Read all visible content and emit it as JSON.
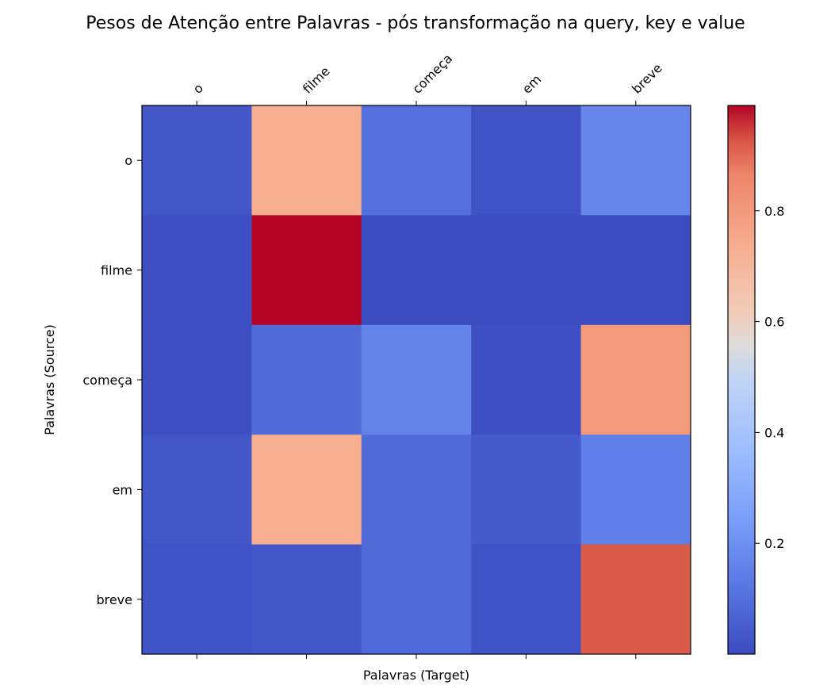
{
  "chart_data": {
    "type": "heatmap",
    "title": "Pesos de Atenção entre Palavras - pós transformação na query, key e value",
    "xlabel": "Palavras (Target)",
    "ylabel": "Palavras (Source)",
    "x_categories": [
      "o",
      "filme",
      "começa",
      "em",
      "breve"
    ],
    "y_categories": [
      "o",
      "filme",
      "começa",
      "em",
      "breve"
    ],
    "values": [
      [
        0.03,
        0.74,
        0.1,
        0.02,
        0.17
      ],
      [
        0.01,
        0.99,
        0.0,
        0.0,
        0.0
      ],
      [
        0.01,
        0.09,
        0.16,
        0.01,
        0.8
      ],
      [
        0.03,
        0.74,
        0.09,
        0.04,
        0.15
      ],
      [
        0.02,
        0.03,
        0.09,
        0.02,
        0.92
      ]
    ],
    "colormap": "coolwarm",
    "colorbar": {
      "range": [
        0.0,
        0.99
      ],
      "ticks": [
        0.2,
        0.4,
        0.6,
        0.8
      ]
    },
    "grid": false,
    "legend": "colorbar-right"
  }
}
